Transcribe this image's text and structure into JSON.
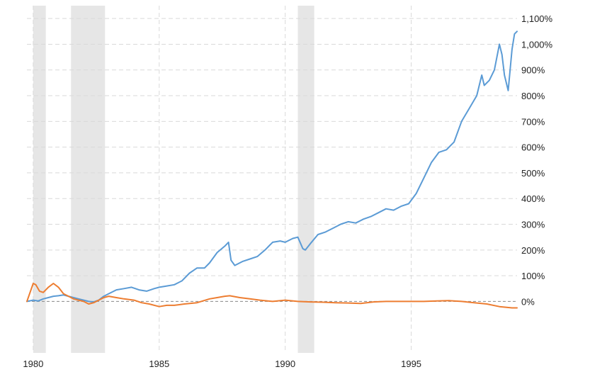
{
  "chart_data": {
    "type": "line",
    "title": "",
    "xlabel": "",
    "ylabel": "",
    "xlim": [
      1979.75,
      1999.2
    ],
    "ylim": [
      -200,
      1150
    ],
    "grid": true,
    "x_ticks": [
      {
        "value": 1980,
        "label": "1980"
      },
      {
        "value": 1985,
        "label": "1985"
      },
      {
        "value": 1990,
        "label": "1990"
      },
      {
        "value": 1995,
        "label": "1995"
      }
    ],
    "y_ticks": [
      {
        "value": 0,
        "label": "0%"
      },
      {
        "value": 100,
        "label": "100%"
      },
      {
        "value": 200,
        "label": "200%"
      },
      {
        "value": 300,
        "label": "300%"
      },
      {
        "value": 400,
        "label": "400%"
      },
      {
        "value": 500,
        "label": "500%"
      },
      {
        "value": 600,
        "label": "600%"
      },
      {
        "value": 700,
        "label": "700%"
      },
      {
        "value": 800,
        "label": "800%"
      },
      {
        "value": 900,
        "label": "900%"
      },
      {
        "value": 1000,
        "label": "1,000%"
      },
      {
        "value": 1100,
        "label": "1,100%"
      }
    ],
    "shaded_regions": [
      {
        "start": 1980.0,
        "end": 1980.5
      },
      {
        "start": 1981.5,
        "end": 1982.85
      },
      {
        "start": 1990.5,
        "end": 1991.15
      }
    ],
    "colors": {
      "series_blue": "#5b9bd5",
      "series_orange": "#ed7d31",
      "shade": "#e6e6e6",
      "grid": "#d9d9d9"
    },
    "series": [
      {
        "color": "#5b9bd5",
        "x": [
          1979.75,
          1980.0,
          1980.2,
          1980.4,
          1980.6,
          1980.8,
          1981.0,
          1981.2,
          1981.4,
          1981.6,
          1981.8,
          1982.0,
          1982.2,
          1982.4,
          1982.6,
          1982.8,
          1983.0,
          1983.3,
          1983.6,
          1983.9,
          1984.2,
          1984.5,
          1984.8,
          1985.0,
          1985.3,
          1985.6,
          1985.9,
          1986.2,
          1986.5,
          1986.8,
          1987.0,
          1987.3,
          1987.6,
          1987.75,
          1987.85,
          1988.0,
          1988.3,
          1988.6,
          1988.9,
          1989.2,
          1989.5,
          1989.8,
          1990.0,
          1990.3,
          1990.5,
          1990.7,
          1990.8,
          1991.0,
          1991.3,
          1991.6,
          1991.9,
          1992.2,
          1992.5,
          1992.8,
          1993.1,
          1993.4,
          1993.7,
          1994.0,
          1994.3,
          1994.6,
          1994.9,
          1995.2,
          1995.5,
          1995.8,
          1996.1,
          1996.4,
          1996.7,
          1997.0,
          1997.3,
          1997.6,
          1997.8,
          1997.9,
          1998.1,
          1998.3,
          1998.5,
          1998.6,
          1998.7,
          1998.85,
          1999.0,
          1999.1,
          1999.2
        ],
        "values": [
          0,
          5,
          2,
          10,
          15,
          20,
          22,
          25,
          20,
          15,
          10,
          5,
          0,
          -2,
          5,
          20,
          30,
          45,
          50,
          55,
          45,
          40,
          50,
          55,
          60,
          65,
          80,
          110,
          130,
          130,
          150,
          190,
          215,
          230,
          160,
          140,
          155,
          165,
          175,
          200,
          230,
          235,
          230,
          245,
          250,
          205,
          200,
          225,
          260,
          270,
          285,
          300,
          310,
          305,
          320,
          330,
          345,
          360,
          355,
          370,
          380,
          420,
          480,
          540,
          580,
          590,
          620,
          700,
          750,
          800,
          880,
          840,
          860,
          900,
          1000,
          960,
          880,
          820,
          980,
          1040,
          1050
        ]
      },
      {
        "color": "#ed7d31",
        "x": [
          1979.75,
          1980.0,
          1980.1,
          1980.25,
          1980.4,
          1980.6,
          1980.8,
          1981.0,
          1981.2,
          1981.4,
          1981.6,
          1981.8,
          1982.0,
          1982.2,
          1982.4,
          1982.6,
          1982.8,
          1983.0,
          1983.3,
          1983.6,
          1984.0,
          1984.3,
          1984.6,
          1985.0,
          1985.3,
          1985.6,
          1986.0,
          1986.5,
          1987.0,
          1987.3,
          1987.6,
          1987.8,
          1988.2,
          1988.6,
          1989.0,
          1989.5,
          1990.0,
          1990.5,
          1991.0,
          1991.5,
          1992.0,
          1992.5,
          1993.0,
          1993.5,
          1994.0,
          1994.5,
          1995.0,
          1995.5,
          1996.0,
          1996.5,
          1997.0,
          1997.5,
          1998.0,
          1998.5,
          1999.0,
          1999.2
        ],
        "values": [
          0,
          70,
          65,
          40,
          35,
          55,
          70,
          55,
          30,
          20,
          10,
          5,
          0,
          -10,
          -5,
          5,
          15,
          20,
          15,
          10,
          5,
          -5,
          -10,
          -20,
          -15,
          -15,
          -10,
          -5,
          10,
          15,
          20,
          22,
          15,
          10,
          5,
          0,
          5,
          0,
          -2,
          -3,
          -5,
          -6,
          -8,
          -2,
          0,
          0,
          0,
          0,
          2,
          3,
          0,
          -5,
          -10,
          -20,
          -25,
          -25
        ]
      }
    ]
  }
}
